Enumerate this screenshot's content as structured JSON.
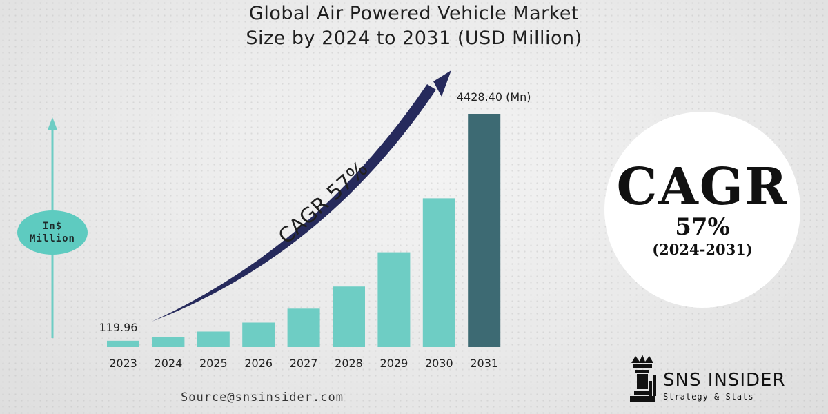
{
  "title_line1": "Global Air Powered Vehicle Market",
  "title_line2": "Size by 2024 to 2031 (USD Million)",
  "unit_badge": {
    "line1": "In$",
    "line2": "Million"
  },
  "cagr_arrow_label": "CAGR 57%",
  "cagr_circle": {
    "big": "CAGR",
    "pct": "57%",
    "range": "(2024-2031)"
  },
  "source": "Source@snsinsider.com",
  "logo": {
    "name": "SNS INSIDER",
    "tagline": "Strategy & Stats"
  },
  "colors": {
    "bar": "#6ecdc4",
    "highlight_bar": "#3d6a73",
    "arrow": "#262a5c",
    "axis_arrow": "#6ecdc4"
  },
  "chart_data": {
    "type": "bar",
    "categories": [
      "2023",
      "2024",
      "2025",
      "2026",
      "2027",
      "2028",
      "2029",
      "2030",
      "2031"
    ],
    "values": [
      119.96,
      187,
      295,
      465,
      730,
      1150,
      1800,
      2825,
      4428.4
    ],
    "data_labels": {
      "2023": "119.96",
      "2031": "4428.40 (Mn)"
    },
    "ylim": [
      0,
      4500
    ],
    "grid": false
  }
}
